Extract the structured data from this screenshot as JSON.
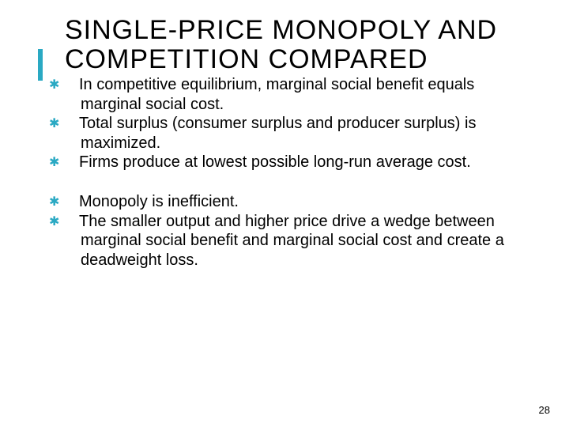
{
  "accent_color": "#2aa9c3",
  "title": "SINGLE-PRICE MONOPOLY AND COMPETITION COMPARED",
  "bullets_group1": [
    "In competitive equilibrium, marginal social benefit equals marginal social cost.",
    "Total surplus (consumer surplus and producer surplus) is maximized.",
    "Firms produce at lowest possible long-run average cost."
  ],
  "bullets_group2": [
    "Monopoly is inefficient.",
    "The smaller output and higher price drive a wedge between marginal social benefit and marginal social cost and create a deadweight loss."
  ],
  "page_number": "28"
}
